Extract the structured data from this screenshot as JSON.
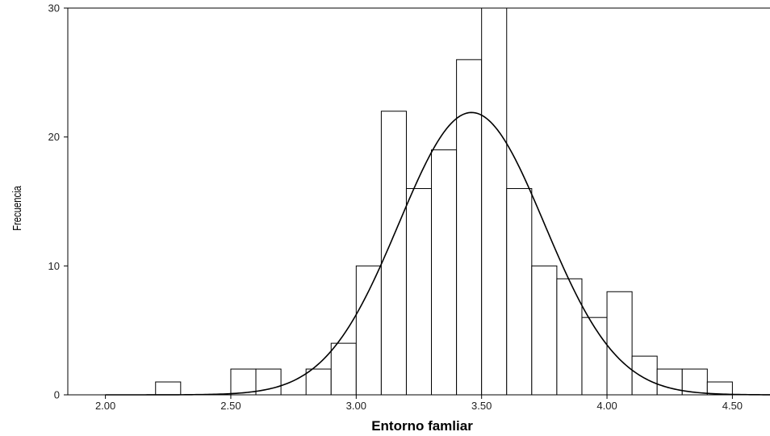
{
  "chart_data": {
    "type": "bar",
    "subtype": "histogram",
    "xlabel": "Entorno famliar",
    "ylabel": "Frecuencia",
    "xlim": [
      1.85,
      4.65
    ],
    "ylim": [
      0,
      30
    ],
    "x_ticks": [
      2.0,
      2.5,
      3.0,
      3.5,
      4.0,
      4.5
    ],
    "x_tick_labels": [
      "2.00",
      "2.50",
      "3.00",
      "3.50",
      "4.00",
      "4.50"
    ],
    "y_ticks": [
      0,
      10,
      20,
      30
    ],
    "y_tick_labels": [
      "0",
      "10",
      "20",
      "30"
    ],
    "bin_width": 0.1,
    "bins": [
      {
        "start": 2.2,
        "end": 2.3,
        "count": 1
      },
      {
        "start": 2.5,
        "end": 2.6,
        "count": 2
      },
      {
        "start": 2.6,
        "end": 2.7,
        "count": 2
      },
      {
        "start": 2.8,
        "end": 2.9,
        "count": 2
      },
      {
        "start": 2.9,
        "end": 3.0,
        "count": 4
      },
      {
        "start": 3.0,
        "end": 3.1,
        "count": 10
      },
      {
        "start": 3.1,
        "end": 3.2,
        "count": 22
      },
      {
        "start": 3.2,
        "end": 3.3,
        "count": 16
      },
      {
        "start": 3.3,
        "end": 3.4,
        "count": 19
      },
      {
        "start": 3.4,
        "end": 3.5,
        "count": 26
      },
      {
        "start": 3.5,
        "end": 3.6,
        "count": 30
      },
      {
        "start": 3.6,
        "end": 3.7,
        "count": 16
      },
      {
        "start": 3.7,
        "end": 3.8,
        "count": 10
      },
      {
        "start": 3.8,
        "end": 3.9,
        "count": 9
      },
      {
        "start": 3.9,
        "end": 4.0,
        "count": 6
      },
      {
        "start": 4.0,
        "end": 4.1,
        "count": 8
      },
      {
        "start": 4.1,
        "end": 4.2,
        "count": 3
      },
      {
        "start": 4.2,
        "end": 4.3,
        "count": 2
      },
      {
        "start": 4.3,
        "end": 4.4,
        "count": 2
      },
      {
        "start": 4.4,
        "end": 4.5,
        "count": 1
      }
    ],
    "normal_curve": {
      "mean": 3.46,
      "sd": 0.29,
      "peak": 21.9
    },
    "grid": false,
    "legend": "none",
    "colors": {
      "bar_fill": "#ffffff",
      "bar_stroke": "#000000",
      "curve": "#000000",
      "axis": "#000000"
    }
  }
}
